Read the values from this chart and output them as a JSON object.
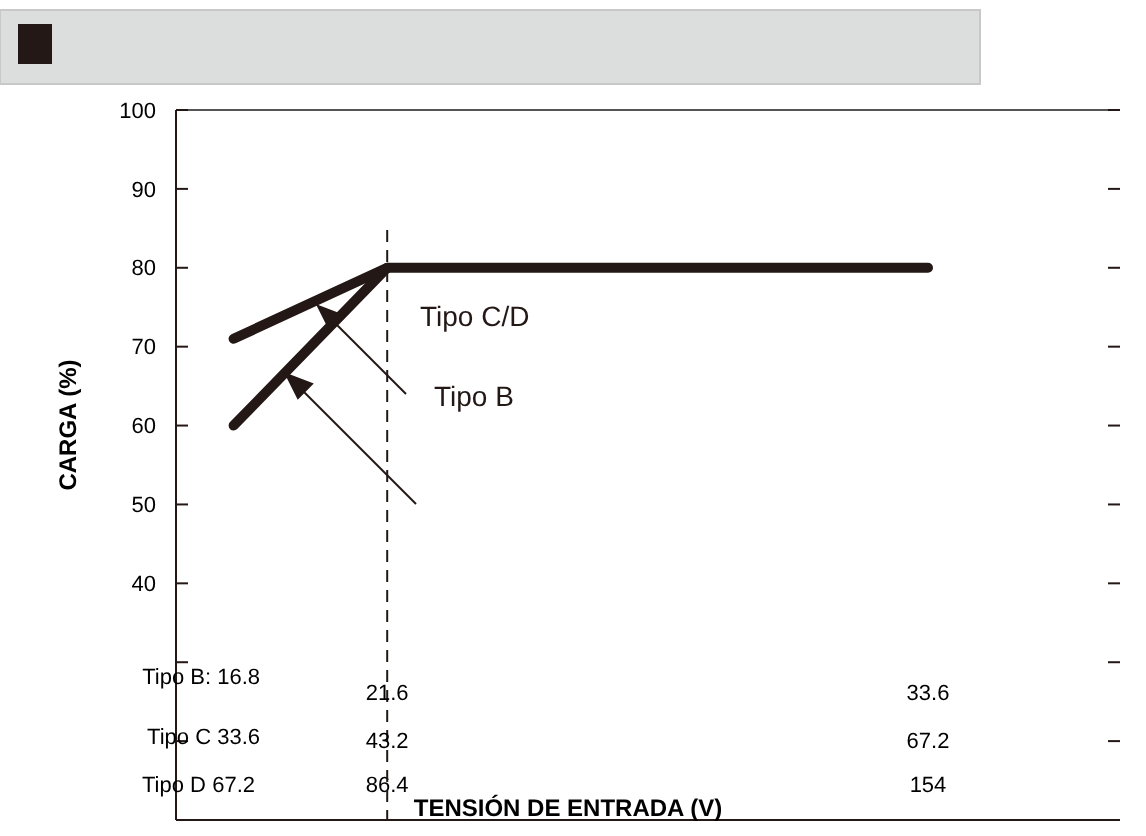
{
  "chart_data": {
    "type": "line",
    "xlabel": "TENSIÓN DE ENTRADA (V)",
    "ylabel": "CARGA (%)",
    "xlim": [
      60,
      178
    ],
    "xticks": [
      67.2,
      86.4,
      154
    ],
    "ylim": [
      10,
      100
    ],
    "yticks": [
      {
        "value": 20,
        "label": null
      },
      {
        "value": 30,
        "label": null
      },
      40,
      50,
      60,
      70,
      80,
      90,
      100
    ],
    "series": [
      {
        "name": "Tipo C/D",
        "color": "#231815",
        "x": [
          67.2,
          86.4,
          154
        ],
        "values": [
          71,
          80,
          80
        ]
      },
      {
        "name": "Tipo B",
        "color": "#231815",
        "x": [
          67.2,
          86.4
        ],
        "values": [
          60,
          80
        ]
      }
    ],
    "ref_lines": [
      {
        "axis": "x",
        "value": 86.4,
        "line_style": "dashed",
        "color": "#231815"
      }
    ],
    "annotations": [
      "Tipo B: 16.8",
      "21.6",
      "33.6",
      "Tipo C 33.6",
      "43.2",
      "67.2",
      "Tipo D"
    ],
    "grid": false,
    "marker": "none",
    "line_style": "solid"
  }
}
